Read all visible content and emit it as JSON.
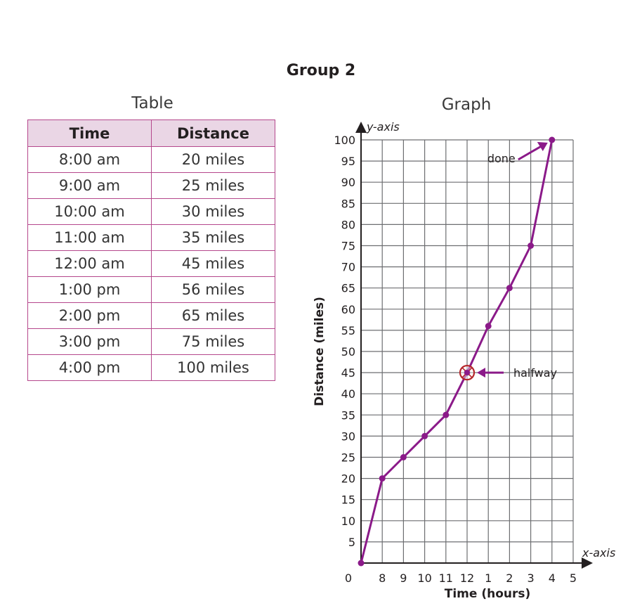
{
  "page": {
    "title": "Group 2"
  },
  "table": {
    "caption": "Table",
    "headers": [
      "Time",
      "Distance"
    ],
    "rows": [
      [
        "8:00 am",
        "20 miles"
      ],
      [
        "9:00 am",
        "25 miles"
      ],
      [
        "10:00 am",
        "30 miles"
      ],
      [
        "11:00 am",
        "35 miles"
      ],
      [
        "12:00 am",
        "45 miles"
      ],
      [
        "1:00 pm",
        "56 miles"
      ],
      [
        "2:00 pm",
        "65 miles"
      ],
      [
        "3:00 pm",
        "75 miles"
      ],
      [
        "4:00 pm",
        "100 miles"
      ]
    ]
  },
  "chart_data": {
    "type": "line",
    "title": "Graph",
    "xlabel": "Time (hours)",
    "ylabel": "Distance (miles)",
    "x_axis_label": "x-axis",
    "y_axis_label": "y-axis",
    "x_tick_labels": [
      "0",
      "8",
      "9",
      "10",
      "11",
      "12",
      "1",
      "2",
      "3",
      "4",
      "5"
    ],
    "y_ticks": [
      5,
      10,
      15,
      20,
      25,
      30,
      35,
      40,
      45,
      50,
      55,
      60,
      65,
      70,
      75,
      80,
      85,
      90,
      95,
      100
    ],
    "ylim": [
      0,
      100
    ],
    "grid": true,
    "series": [
      {
        "x": [
          "0",
          "8",
          "9",
          "10",
          "11",
          "12",
          "1",
          "2",
          "3",
          "4"
        ],
        "y": [
          0,
          20,
          25,
          30,
          35,
          45,
          56,
          65,
          75,
          100
        ]
      }
    ],
    "annotations": [
      {
        "text": "done",
        "x": "4",
        "y": 100
      },
      {
        "text": "halfway",
        "x": "12",
        "y": 45
      }
    ],
    "line_color": "#8b1a89",
    "circle_color": "#b5262b"
  }
}
